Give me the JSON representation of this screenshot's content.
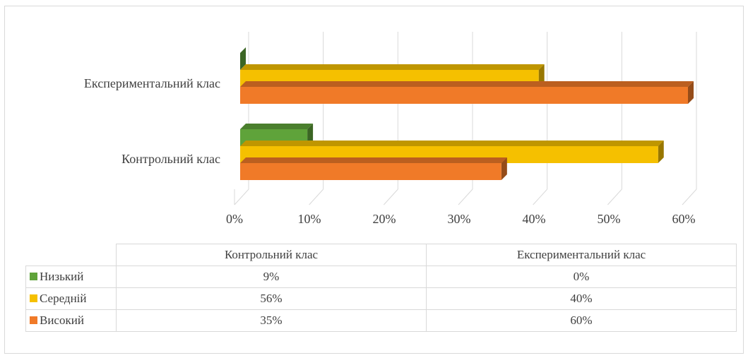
{
  "chart_data": {
    "type": "bar",
    "orientation": "horizontal",
    "style": "3d",
    "categories": [
      "Контрольний клас",
      "Експериментальний клас"
    ],
    "series": [
      {
        "name": "Низький",
        "values": [
          9,
          0
        ],
        "color": "#5fa33a"
      },
      {
        "name": "Середній",
        "values": [
          56,
          40
        ],
        "color": "#f5c000"
      },
      {
        "name": "Високий",
        "values": [
          35,
          60
        ],
        "color": "#f07a28"
      }
    ],
    "xlim": [
      0,
      60
    ],
    "x_ticks": [
      "0%",
      "10%",
      "20%",
      "30%",
      "40%",
      "50%",
      "60%"
    ],
    "grid": true,
    "legend": "data-table"
  },
  "table": {
    "headers": [
      "Контрольний клас",
      "Експериментальний клас"
    ],
    "rows": [
      {
        "label": "Низький",
        "color": "#5fa33a",
        "cells": [
          "9%",
          "0%"
        ]
      },
      {
        "label": "Середній",
        "color": "#f5c000",
        "cells": [
          "56%",
          "40%"
        ]
      },
      {
        "label": "Високий",
        "color": "#f07a28",
        "cells": [
          "35%",
          "60%"
        ]
      }
    ]
  }
}
